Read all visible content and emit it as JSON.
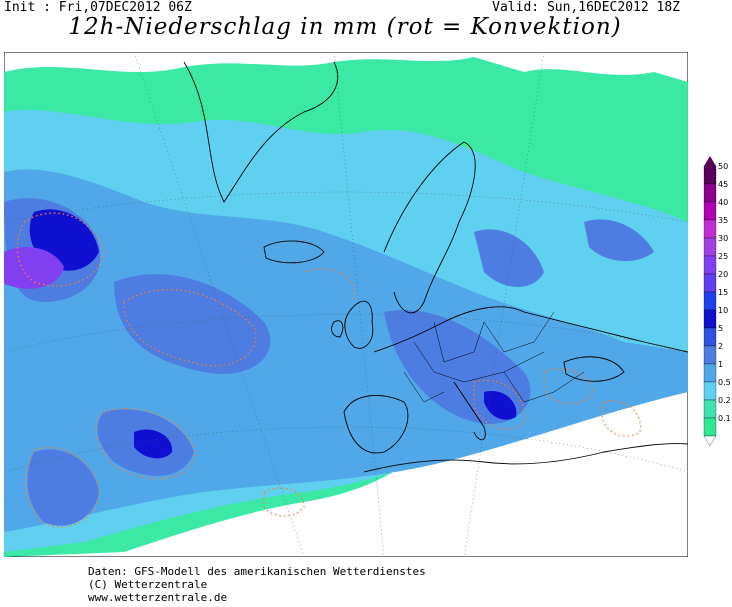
{
  "header": {
    "init": "Init : Fri,07DEC2012 06Z",
    "valid": "Valid: Sun,16DEC2012 18Z",
    "title": "12h-Niederschlag in mm (rot = Konvektion)"
  },
  "legend": {
    "levels": [
      "50",
      "45",
      "40",
      "35",
      "30",
      "25",
      "20",
      "15",
      "10",
      "5",
      "2",
      "1",
      "0.5",
      "0.2",
      "0.1"
    ],
    "colors": [
      "#5a005a",
      "#8a008a",
      "#b000b0",
      "#c030d0",
      "#a040e0",
      "#8040f0",
      "#6040f0",
      "#2040f0",
      "#1010d0",
      "#3050e0",
      "#4d7de0",
      "#50a8e8",
      "#60d0f0",
      "#40e0b0",
      "#30e890"
    ]
  },
  "footer": {
    "line1": "Daten: GFS-Modell des amerikanischen Wetterdienstes",
    "line2": "(C) Wetterzentrale",
    "line3": "www.wetterzentrale.de"
  }
}
